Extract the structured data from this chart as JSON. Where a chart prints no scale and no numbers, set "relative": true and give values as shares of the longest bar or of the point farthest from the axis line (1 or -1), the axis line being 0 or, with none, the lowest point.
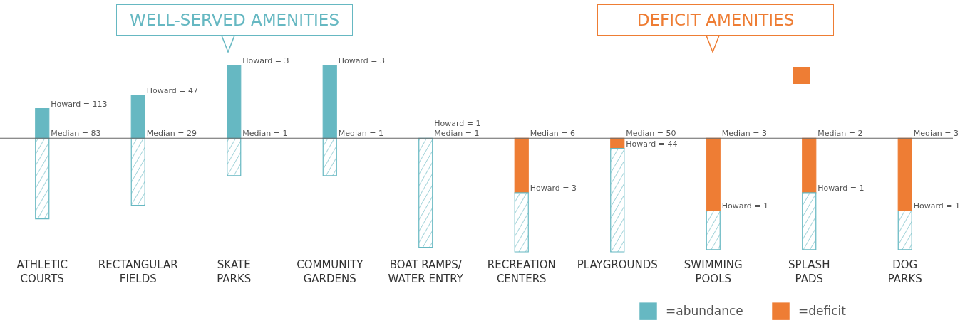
{
  "chart_data": {
    "type": "bar",
    "stacked": true,
    "relative": true,
    "legend": "bottom right",
    "categories": [
      "ATHLETIC\nCOURTS",
      "RECTANGULAR\nFIELDS",
      "SKATE\nPARKS",
      "COMMUNITY\nGARDENS",
      "BOAT RAMPS/\nWATER ENTRY",
      "RECREATION\nCENTERS",
      "PLAYGROUNDS",
      "SWIMMING\nPOOLS",
      "SPLASH\nPADS",
      "DOG\nPARKS"
    ],
    "series": [
      {
        "name": "=abundance",
        "color": "#66b8c2",
        "values": [
          0.26,
          0.38,
          0.64,
          0.64,
          0,
          0,
          0,
          0,
          0,
          0
        ]
      },
      {
        "name": "=deficit",
        "color": "#ee7d34",
        "values": [
          0,
          0,
          0,
          0,
          0,
          -0.48,
          -0.09,
          -0.64,
          -0.48,
          -0.64
        ]
      },
      {
        "color": "#66b8c2",
        "values": [
          -0.71,
          -0.59,
          -0.33,
          -0.33,
          -0.96,
          -0.52,
          -0.91,
          -0.34,
          -0.5,
          -0.34
        ]
      }
    ],
    "annotations": [
      "WELL-SERVED AMENITIES",
      "DEFICIT AMENITIES",
      {
        "text": "Howard = 113",
        "x": "ATHLETIC\nCOURTS",
        "y": 0.26
      },
      {
        "text": "Median = 83",
        "x": "ATHLETIC\nCOURTS",
        "y": 0
      },
      {
        "text": "Howard = 47",
        "x": "RECTANGULAR\nFIELDS",
        "y": 0.38
      },
      {
        "text": "Median = 29",
        "x": "RECTANGULAR\nFIELDS",
        "y": 0
      },
      {
        "text": "Howard = 3",
        "x": "SKATE\nPARKS",
        "y": 0.64
      },
      {
        "text": "Median = 1",
        "x": "SKATE\nPARKS",
        "y": 0
      },
      {
        "text": "Howard = 3",
        "x": "COMMUNITY\nGARDENS",
        "y": 0.64
      },
      {
        "text": "Median = 1",
        "x": "COMMUNITY\nGARDENS",
        "y": 0
      },
      {
        "text": "Howard = 1",
        "x": "BOAT RAMPS/\nWATER ENTRY",
        "y": 0
      },
      {
        "text": "Median = 1",
        "x": "BOAT RAMPS/\nWATER ENTRY",
        "y": 0
      },
      {
        "text": "Median = 6",
        "x": "RECREATION\nCENTERS",
        "y": 0
      },
      {
        "text": "Howard = 3",
        "x": "RECREATION\nCENTERS",
        "y": -0.48
      },
      {
        "text": "Median = 50",
        "x": "PLAYGROUNDS",
        "y": 0
      },
      {
        "text": "Howard = 44",
        "x": "PLAYGROUNDS",
        "y": -0.09
      },
      {
        "text": "Median = 3",
        "x": "SWIMMING\nPOOLS",
        "y": 0
      },
      {
        "text": "Howard = 1",
        "x": "SWIMMING\nPOOLS",
        "y": -0.64
      },
      {
        "text": "Median = 2",
        "x": "SPLASH\nPADS",
        "y": 0
      },
      {
        "text": "Howard = 1",
        "x": "SPLASH\nPADS",
        "y": -0.48
      },
      {
        "text": "Median = 3",
        "x": "DOG\nPARKS",
        "y": 0
      },
      {
        "text": "Howard = 1",
        "x": "DOG\nPARKS",
        "y": -0.64
      }
    ]
  }
}
